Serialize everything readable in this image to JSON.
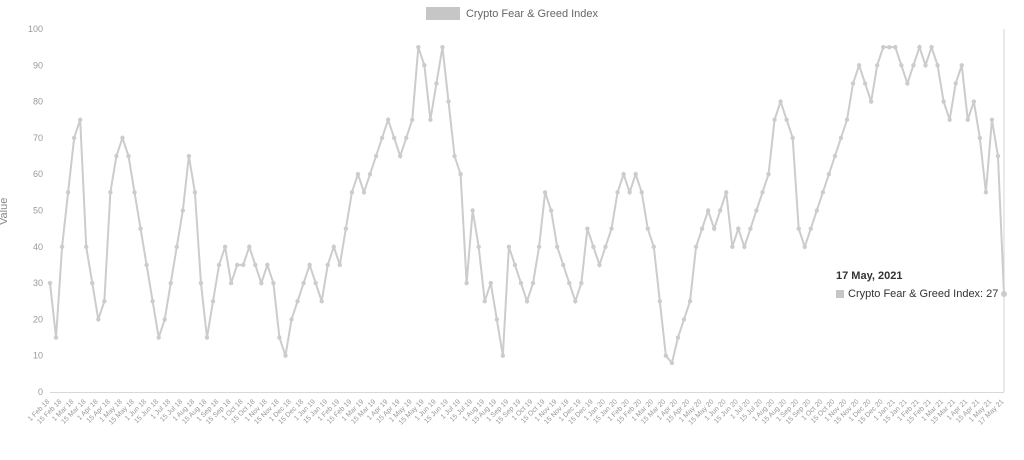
{
  "legend": {
    "label": "Crypto Fear & Greed Index",
    "swatch_color": "#c6c6c6"
  },
  "y_axis": {
    "label": "Value",
    "ticks": [
      0,
      10,
      20,
      30,
      40,
      50,
      60,
      70,
      80,
      90,
      100
    ]
  },
  "tooltip": {
    "date": "17 May, 2021",
    "series_label": "Crypto Fear & Greed Index",
    "value": 27,
    "series_text": "Crypto Fear & Greed Index: 27",
    "swatch_color": "#c6c6c6"
  },
  "chart_data": {
    "type": "line",
    "title": "Crypto Fear & Greed Index",
    "xlabel": "",
    "ylabel": "Value",
    "ylim": [
      0,
      100
    ],
    "yticks": [
      0,
      10,
      20,
      30,
      40,
      50,
      60,
      70,
      80,
      90,
      100
    ],
    "grid": false,
    "legend_position": "top-center",
    "line_color": "#cccccc",
    "marker": "circle",
    "x_tick_rotation": -45,
    "x_tick_every": 2,
    "highlight_point": {
      "label": "17 May 21",
      "value": 27
    },
    "points": [
      [
        "1 Feb 18",
        30
      ],
      [
        "8 Feb 18",
        15
      ],
      [
        "15 Feb 18",
        40
      ],
      [
        "22 Feb 18",
        55
      ],
      [
        "1 Mar 18",
        70
      ],
      [
        "8 Mar 18",
        75
      ],
      [
        "15 Mar 18",
        40
      ],
      [
        "22 Mar 18",
        30
      ],
      [
        "1 Apr 18",
        20
      ],
      [
        "8 Apr 18",
        25
      ],
      [
        "15 Apr 18",
        55
      ],
      [
        "22 Apr 18",
        65
      ],
      [
        "1 May 18",
        70
      ],
      [
        "8 May 18",
        65
      ],
      [
        "15 May 18",
        55
      ],
      [
        "22 May 18",
        45
      ],
      [
        "1 Jun 18",
        35
      ],
      [
        "8 Jun 18",
        25
      ],
      [
        "15 Jun 18",
        15
      ],
      [
        "22 Jun 18",
        20
      ],
      [
        "1 Jul 18",
        30
      ],
      [
        "8 Jul 18",
        40
      ],
      [
        "15 Jul 18",
        50
      ],
      [
        "22 Jul 18",
        65
      ],
      [
        "1 Aug 18",
        55
      ],
      [
        "8 Aug 18",
        30
      ],
      [
        "15 Aug 18",
        15
      ],
      [
        "22 Aug 18",
        25
      ],
      [
        "1 Sep 18",
        35
      ],
      [
        "8 Sep 18",
        40
      ],
      [
        "15 Sep 18",
        30
      ],
      [
        "22 Sep 18",
        35
      ],
      [
        "1 Oct 18",
        35
      ],
      [
        "8 Oct 18",
        40
      ],
      [
        "15 Oct 18",
        35
      ],
      [
        "22 Oct 18",
        30
      ],
      [
        "1 Nov 18",
        35
      ],
      [
        "8 Nov 18",
        30
      ],
      [
        "15 Nov 18",
        15
      ],
      [
        "22 Nov 18",
        10
      ],
      [
        "1 Dec 18",
        20
      ],
      [
        "8 Dec 18",
        25
      ],
      [
        "15 Dec 18",
        30
      ],
      [
        "22 Dec 18",
        35
      ],
      [
        "1 Jan 19",
        30
      ],
      [
        "8 Jan 19",
        25
      ],
      [
        "15 Jan 19",
        35
      ],
      [
        "22 Jan 19",
        40
      ],
      [
        "1 Feb 19",
        35
      ],
      [
        "8 Feb 19",
        45
      ],
      [
        "15 Feb 19",
        55
      ],
      [
        "22 Feb 19",
        60
      ],
      [
        "1 Mar 19",
        55
      ],
      [
        "8 Mar 19",
        60
      ],
      [
        "15 Mar 19",
        65
      ],
      [
        "22 Mar 19",
        70
      ],
      [
        "1 Apr 19",
        75
      ],
      [
        "8 Apr 19",
        70
      ],
      [
        "15 Apr 19",
        65
      ],
      [
        "22 Apr 19",
        70
      ],
      [
        "1 May 19",
        75
      ],
      [
        "8 May 19",
        95
      ],
      [
        "15 May 19",
        90
      ],
      [
        "22 May 19",
        75
      ],
      [
        "1 Jun 19",
        85
      ],
      [
        "8 Jun 19",
        95
      ],
      [
        "15 Jun 19",
        80
      ],
      [
        "22 Jun 19",
        65
      ],
      [
        "1 Jul 19",
        60
      ],
      [
        "8 Jul 19",
        30
      ],
      [
        "15 Jul 19",
        50
      ],
      [
        "22 Jul 19",
        40
      ],
      [
        "1 Aug 19",
        25
      ],
      [
        "8 Aug 19",
        30
      ],
      [
        "15 Aug 19",
        20
      ],
      [
        "22 Aug 19",
        10
      ],
      [
        "1 Sep 19",
        40
      ],
      [
        "8 Sep 19",
        35
      ],
      [
        "15 Sep 19",
        30
      ],
      [
        "22 Sep 19",
        25
      ],
      [
        "1 Oct 19",
        30
      ],
      [
        "8 Oct 19",
        40
      ],
      [
        "15 Oct 19",
        55
      ],
      [
        "22 Oct 19",
        50
      ],
      [
        "1 Nov 19",
        40
      ],
      [
        "8 Nov 19",
        35
      ],
      [
        "15 Nov 19",
        30
      ],
      [
        "22 Nov 19",
        25
      ],
      [
        "1 Dec 19",
        30
      ],
      [
        "8 Dec 19",
        45
      ],
      [
        "15 Dec 19",
        40
      ],
      [
        "22 Dec 19",
        35
      ],
      [
        "1 Jan 20",
        40
      ],
      [
        "8 Jan 20",
        45
      ],
      [
        "15 Jan 20",
        55
      ],
      [
        "22 Jan 20",
        60
      ],
      [
        "1 Feb 20",
        55
      ],
      [
        "8 Feb 20",
        60
      ],
      [
        "15 Feb 20",
        55
      ],
      [
        "22 Feb 20",
        45
      ],
      [
        "1 Mar 20",
        40
      ],
      [
        "8 Mar 20",
        25
      ],
      [
        "15 Mar 20",
        10
      ],
      [
        "22 Mar 20",
        8
      ],
      [
        "1 Apr 20",
        15
      ],
      [
        "8 Apr 20",
        20
      ],
      [
        "15 Apr 20",
        25
      ],
      [
        "22 Apr 20",
        40
      ],
      [
        "1 May 20",
        45
      ],
      [
        "8 May 20",
        50
      ],
      [
        "15 May 20",
        45
      ],
      [
        "22 May 20",
        50
      ],
      [
        "1 Jun 20",
        55
      ],
      [
        "8 Jun 20",
        40
      ],
      [
        "15 Jun 20",
        45
      ],
      [
        "22 Jun 20",
        40
      ],
      [
        "1 Jul 20",
        45
      ],
      [
        "8 Jul 20",
        50
      ],
      [
        "15 Jul 20",
        55
      ],
      [
        "22 Jul 20",
        60
      ],
      [
        "1 Aug 20",
        75
      ],
      [
        "8 Aug 20",
        80
      ],
      [
        "15 Aug 20",
        75
      ],
      [
        "22 Aug 20",
        70
      ],
      [
        "1 Sep 20",
        45
      ],
      [
        "8 Sep 20",
        40
      ],
      [
        "15 Sep 20",
        45
      ],
      [
        "22 Sep 20",
        50
      ],
      [
        "1 Oct 20",
        55
      ],
      [
        "8 Oct 20",
        60
      ],
      [
        "15 Oct 20",
        65
      ],
      [
        "22 Oct 20",
        70
      ],
      [
        "1 Nov 20",
        75
      ],
      [
        "8 Nov 20",
        85
      ],
      [
        "15 Nov 20",
        90
      ],
      [
        "22 Nov 20",
        85
      ],
      [
        "1 Dec 20",
        80
      ],
      [
        "8 Dec 20",
        90
      ],
      [
        "15 Dec 20",
        95
      ],
      [
        "22 Dec 20",
        95
      ],
      [
        "1 Jan 21",
        95
      ],
      [
        "8 Jan 21",
        90
      ],
      [
        "15 Jan 21",
        85
      ],
      [
        "22 Jan 21",
        90
      ],
      [
        "1 Feb 21",
        95
      ],
      [
        "8 Feb 21",
        90
      ],
      [
        "15 Feb 21",
        95
      ],
      [
        "22 Feb 21",
        90
      ],
      [
        "1 Mar 21",
        80
      ],
      [
        "8 Mar 21",
        75
      ],
      [
        "15 Mar 21",
        85
      ],
      [
        "22 Mar 21",
        90
      ],
      [
        "1 Apr 21",
        75
      ],
      [
        "8 Apr 21",
        80
      ],
      [
        "15 Apr 21",
        70
      ],
      [
        "22 Apr 21",
        55
      ],
      [
        "1 May 21",
        75
      ],
      [
        "9 May 21",
        65
      ],
      [
        "17 May 21",
        27
      ]
    ]
  }
}
